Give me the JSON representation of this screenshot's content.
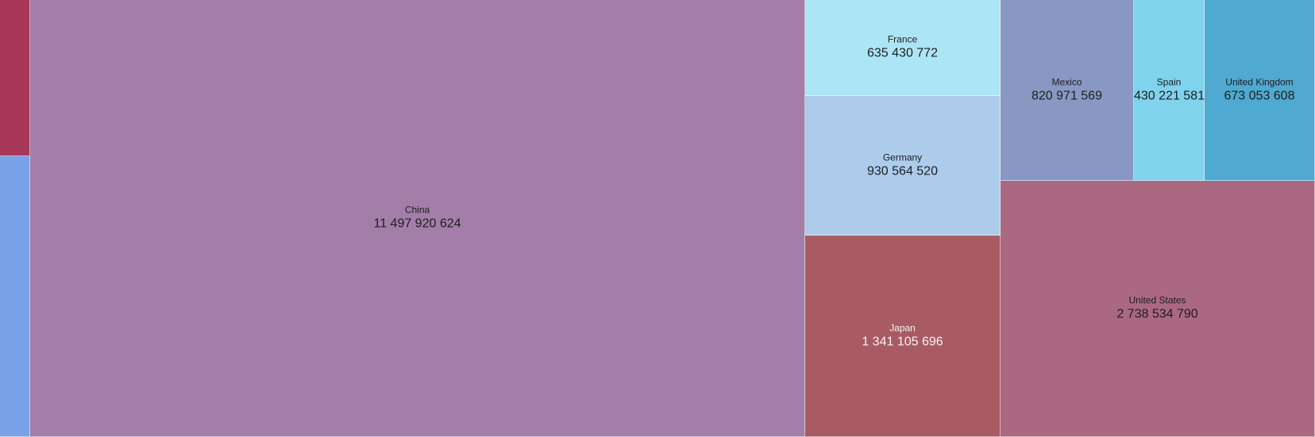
{
  "chart_data": {
    "type": "treemap",
    "title": "",
    "items": [
      {
        "name": "",
        "value": null,
        "color": "#a8375a",
        "show_label": false
      },
      {
        "name": "",
        "value": null,
        "color": "#79a2e8",
        "show_label": false
      },
      {
        "name": "China",
        "value": 11497920624,
        "value_text": "11 497 920 624",
        "color": "#a27ea8",
        "show_label": true
      },
      {
        "name": "France",
        "value": 635430772,
        "value_text": "635 430 772",
        "color": "#ace5f5",
        "show_label": true
      },
      {
        "name": "Germany",
        "value": 930564520,
        "value_text": "930 564 520",
        "color": "#adccec",
        "show_label": true
      },
      {
        "name": "Japan",
        "value": 1341105696,
        "value_text": "1 341 105 696",
        "color": "#a95b63",
        "show_label": true,
        "light_text": true
      },
      {
        "name": "Mexico",
        "value": 820971569,
        "value_text": "820 971 569",
        "color": "#8898c2",
        "show_label": true
      },
      {
        "name": "Spain",
        "value": 430221581,
        "value_text": "430 221 581",
        "color": "#7fd3ec",
        "show_label": true
      },
      {
        "name": "United Kingdom",
        "value": 673053608,
        "value_text": "673 053 608",
        "color": "#4fa9d0",
        "show_label": true
      },
      {
        "name": "United States",
        "value": 2738534790,
        "value_text": "2 738 534 790",
        "color": "#ab6881",
        "show_label": true
      }
    ]
  }
}
